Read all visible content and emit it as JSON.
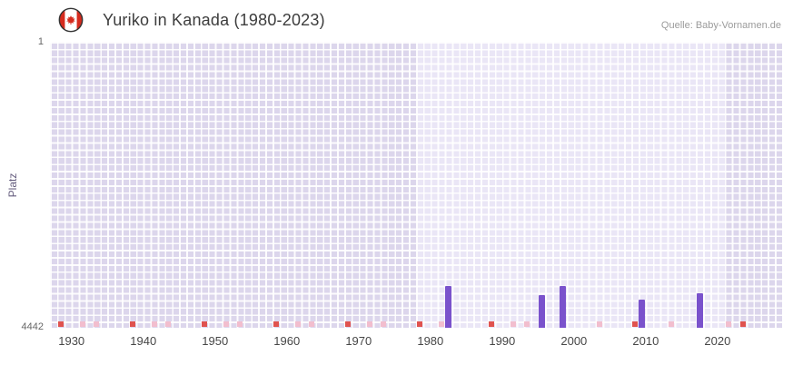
{
  "header": {
    "title": "Yuriko in Kanada (1980-2023)",
    "source": "Quelle: Baby-Vornamen.de",
    "flag_icon": "canada-flag-icon"
  },
  "chart_data": {
    "type": "bar",
    "title": "Yuriko in Kanada (1980-2023)",
    "xlabel": "",
    "ylabel": "Platz",
    "grid": true,
    "legend": null,
    "y_axis": {
      "min": 1,
      "max": 4442,
      "inverted": true,
      "top_tick": "1",
      "bottom_tick": "4442"
    },
    "x_axis": {
      "min": 1927,
      "max": 2029,
      "ticks": [
        1930,
        1940,
        1950,
        1960,
        1970,
        1980,
        1990,
        2000,
        2010,
        2020
      ]
    },
    "background_regions": [
      {
        "from": 1927,
        "to": 1978,
        "color": "#dcd6ec"
      },
      {
        "from": 1978,
        "to": 2021,
        "color": "#eae6f6"
      },
      {
        "from": 2021,
        "to": 2029,
        "color": "#dcd6ec"
      }
    ],
    "bar_color": "#7a52cc",
    "bars": [
      {
        "year": 1982,
        "rank": 3800
      },
      {
        "year": 1995,
        "rank": 3930
      },
      {
        "year": 1998,
        "rank": 3800
      },
      {
        "year": 2009,
        "rank": 4000
      },
      {
        "year": 2017,
        "rank": 3900
      }
    ],
    "baseline_markers": {
      "strong_color": "#e0534f",
      "light_color": "#f2bece",
      "strong_years": [
        1928,
        1938,
        1948,
        1958,
        1968,
        1978,
        1988,
        2008,
        2023
      ],
      "light_years": [
        1931,
        1933,
        1941,
        1943,
        1951,
        1953,
        1961,
        1963,
        1971,
        1973,
        1981,
        1991,
        1993,
        2003,
        2013,
        2021
      ]
    }
  }
}
